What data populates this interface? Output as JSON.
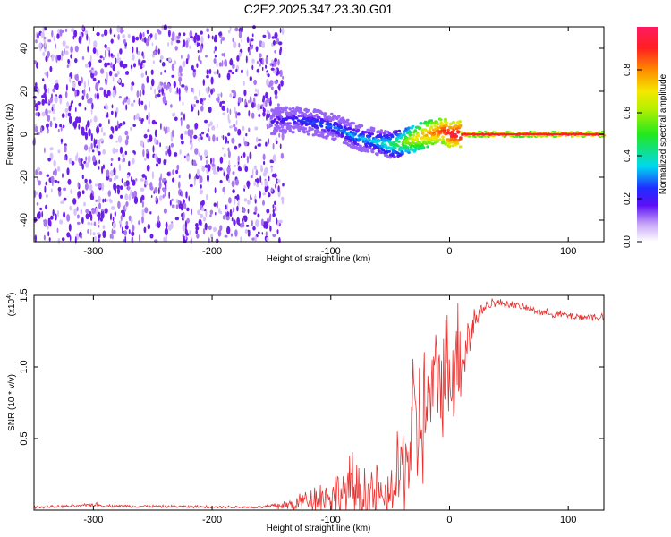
{
  "title": "C2E2.2025.347.23.30.G01",
  "chart_data": [
    {
      "type": "heatmap",
      "name": "spectrogram",
      "xlabel": "Height of straight line (km)",
      "ylabel": "Frequency (Hz)",
      "xlim": [
        -350,
        130
      ],
      "ylim": [
        -50,
        50
      ],
      "xticks": [
        -300,
        -200,
        -100,
        0,
        100
      ],
      "xtick_labels": [
        "-300",
        "-200",
        "-100",
        "0",
        "100"
      ],
      "yticks": [
        -40,
        -20,
        0,
        20,
        40
      ],
      "ytick_labels": [
        "-40",
        "-20",
        "0",
        "20",
        "40"
      ],
      "noise_region_x": [
        -350,
        -140
      ],
      "signal_trace": {
        "x": [
          -150,
          -130,
          -110,
          -95,
          -80,
          -65,
          -50,
          -40,
          -30,
          -20,
          -10,
          -5,
          0,
          10,
          50,
          100,
          130
        ],
        "y": [
          6,
          7,
          5,
          3,
          -1,
          -3,
          -5,
          -4,
          -2,
          0,
          1,
          2,
          0,
          0,
          0,
          0,
          0
        ],
        "amp": [
          0.2,
          0.25,
          0.3,
          0.3,
          0.35,
          0.35,
          0.45,
          0.55,
          0.7,
          0.8,
          0.85,
          0.9,
          0.95,
          1.0,
          1.0,
          1.0,
          1.0
        ]
      },
      "colorbar": {
        "label": "Normalized spectral amplitude",
        "range": [
          0,
          1
        ],
        "ticks": [
          0.0,
          0.2,
          0.4,
          0.6,
          0.8
        ],
        "tick_labels": [
          "0.0",
          "0.2",
          "0.4",
          "0.6",
          "0.8"
        ]
      }
    },
    {
      "type": "line",
      "name": "snr",
      "xlabel": "Height of straight line (km)",
      "ylabel": "SNR (10 * v/v)",
      "scale_label": "(x10",
      "scale_exp": "4",
      "scale_close": ")",
      "xlim": [
        -350,
        130
      ],
      "ylim": [
        0,
        1.5
      ],
      "xticks": [
        -300,
        -200,
        -100,
        0,
        100
      ],
      "xtick_labels": [
        "-300",
        "-200",
        "-100",
        "0",
        "100"
      ],
      "yticks": [
        0.5,
        1.0,
        1.5
      ],
      "ytick_labels": [
        "0.5",
        "1.0",
        "1.5"
      ],
      "color": "#e8312f",
      "series_envelope": {
        "x": [
          -350,
          -310,
          -300,
          -290,
          -160,
          -130,
          -120,
          -100,
          -90,
          -80,
          -70,
          -60,
          -55,
          -50,
          -45,
          -40,
          -35,
          -30,
          -25,
          -20,
          -15,
          -10,
          -5,
          0,
          5,
          10,
          15,
          20,
          25,
          30,
          35,
          40,
          50,
          60,
          70,
          80,
          90,
          100,
          110,
          120,
          130
        ],
        "base": [
          0.02,
          0.03,
          0.04,
          0.03,
          0.02,
          0.04,
          0.08,
          0.1,
          0.12,
          0.15,
          0.12,
          0.1,
          0.06,
          0.1,
          0.2,
          0.3,
          0.4,
          0.55,
          0.6,
          0.7,
          0.8,
          0.9,
          0.95,
          1.0,
          1.05,
          1.1,
          1.2,
          1.3,
          1.38,
          1.42,
          1.45,
          1.45,
          1.44,
          1.42,
          1.4,
          1.38,
          1.37,
          1.36,
          1.35,
          1.35,
          1.35
        ],
        "amp": [
          0.01,
          0.01,
          0.02,
          0.01,
          0.01,
          0.06,
          0.1,
          0.15,
          0.2,
          0.3,
          0.3,
          0.22,
          0.1,
          0.18,
          0.3,
          0.45,
          0.5,
          0.55,
          0.55,
          0.5,
          0.45,
          0.45,
          0.45,
          0.45,
          0.45,
          0.4,
          0.3,
          0.15,
          0.07,
          0.05,
          0.04,
          0.03,
          0.03,
          0.03,
          0.03,
          0.03,
          0.03,
          0.03,
          0.03,
          0.03,
          0.03
        ]
      }
    }
  ]
}
